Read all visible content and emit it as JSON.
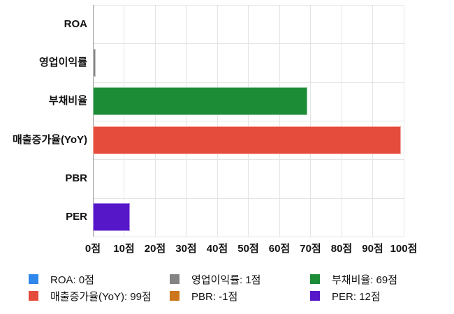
{
  "chart_data": {
    "type": "bar",
    "orientation": "horizontal",
    "title": "",
    "categories": [
      "ROA",
      "영업이익률",
      "부채비율",
      "매출증가율(YoY)",
      "PBR",
      "PER"
    ],
    "values": [
      0,
      1,
      69,
      99,
      -1,
      12
    ],
    "colors": [
      "#2F86EB",
      "#848484",
      "#1C8C36",
      "#E64C3B",
      "#CC751A",
      "#5617C9"
    ],
    "unit": "점",
    "xlim": [
      0,
      100
    ],
    "x_tick_step": 10,
    "x_tick_labels": [
      "0점",
      "10점",
      "20점",
      "30점",
      "40점",
      "50점",
      "60점",
      "70점",
      "80점",
      "90점",
      "100점"
    ],
    "grid": true,
    "legend": {
      "position": "bottom",
      "columns": 3,
      "items": [
        {
          "label": "ROA: 0점"
        },
        {
          "label": "영업이익률: 1점"
        },
        {
          "label": "부채비율: 69점"
        },
        {
          "label": "매출증가율(YoY): 99점"
        },
        {
          "label": "PBR: -1점"
        },
        {
          "label": "PER: 12점"
        }
      ]
    }
  },
  "style": {
    "background": "#FFFFFF",
    "grid_color": "#E4E4E4",
    "axis_color": "#9E9E9E",
    "text_color": "#111111"
  }
}
